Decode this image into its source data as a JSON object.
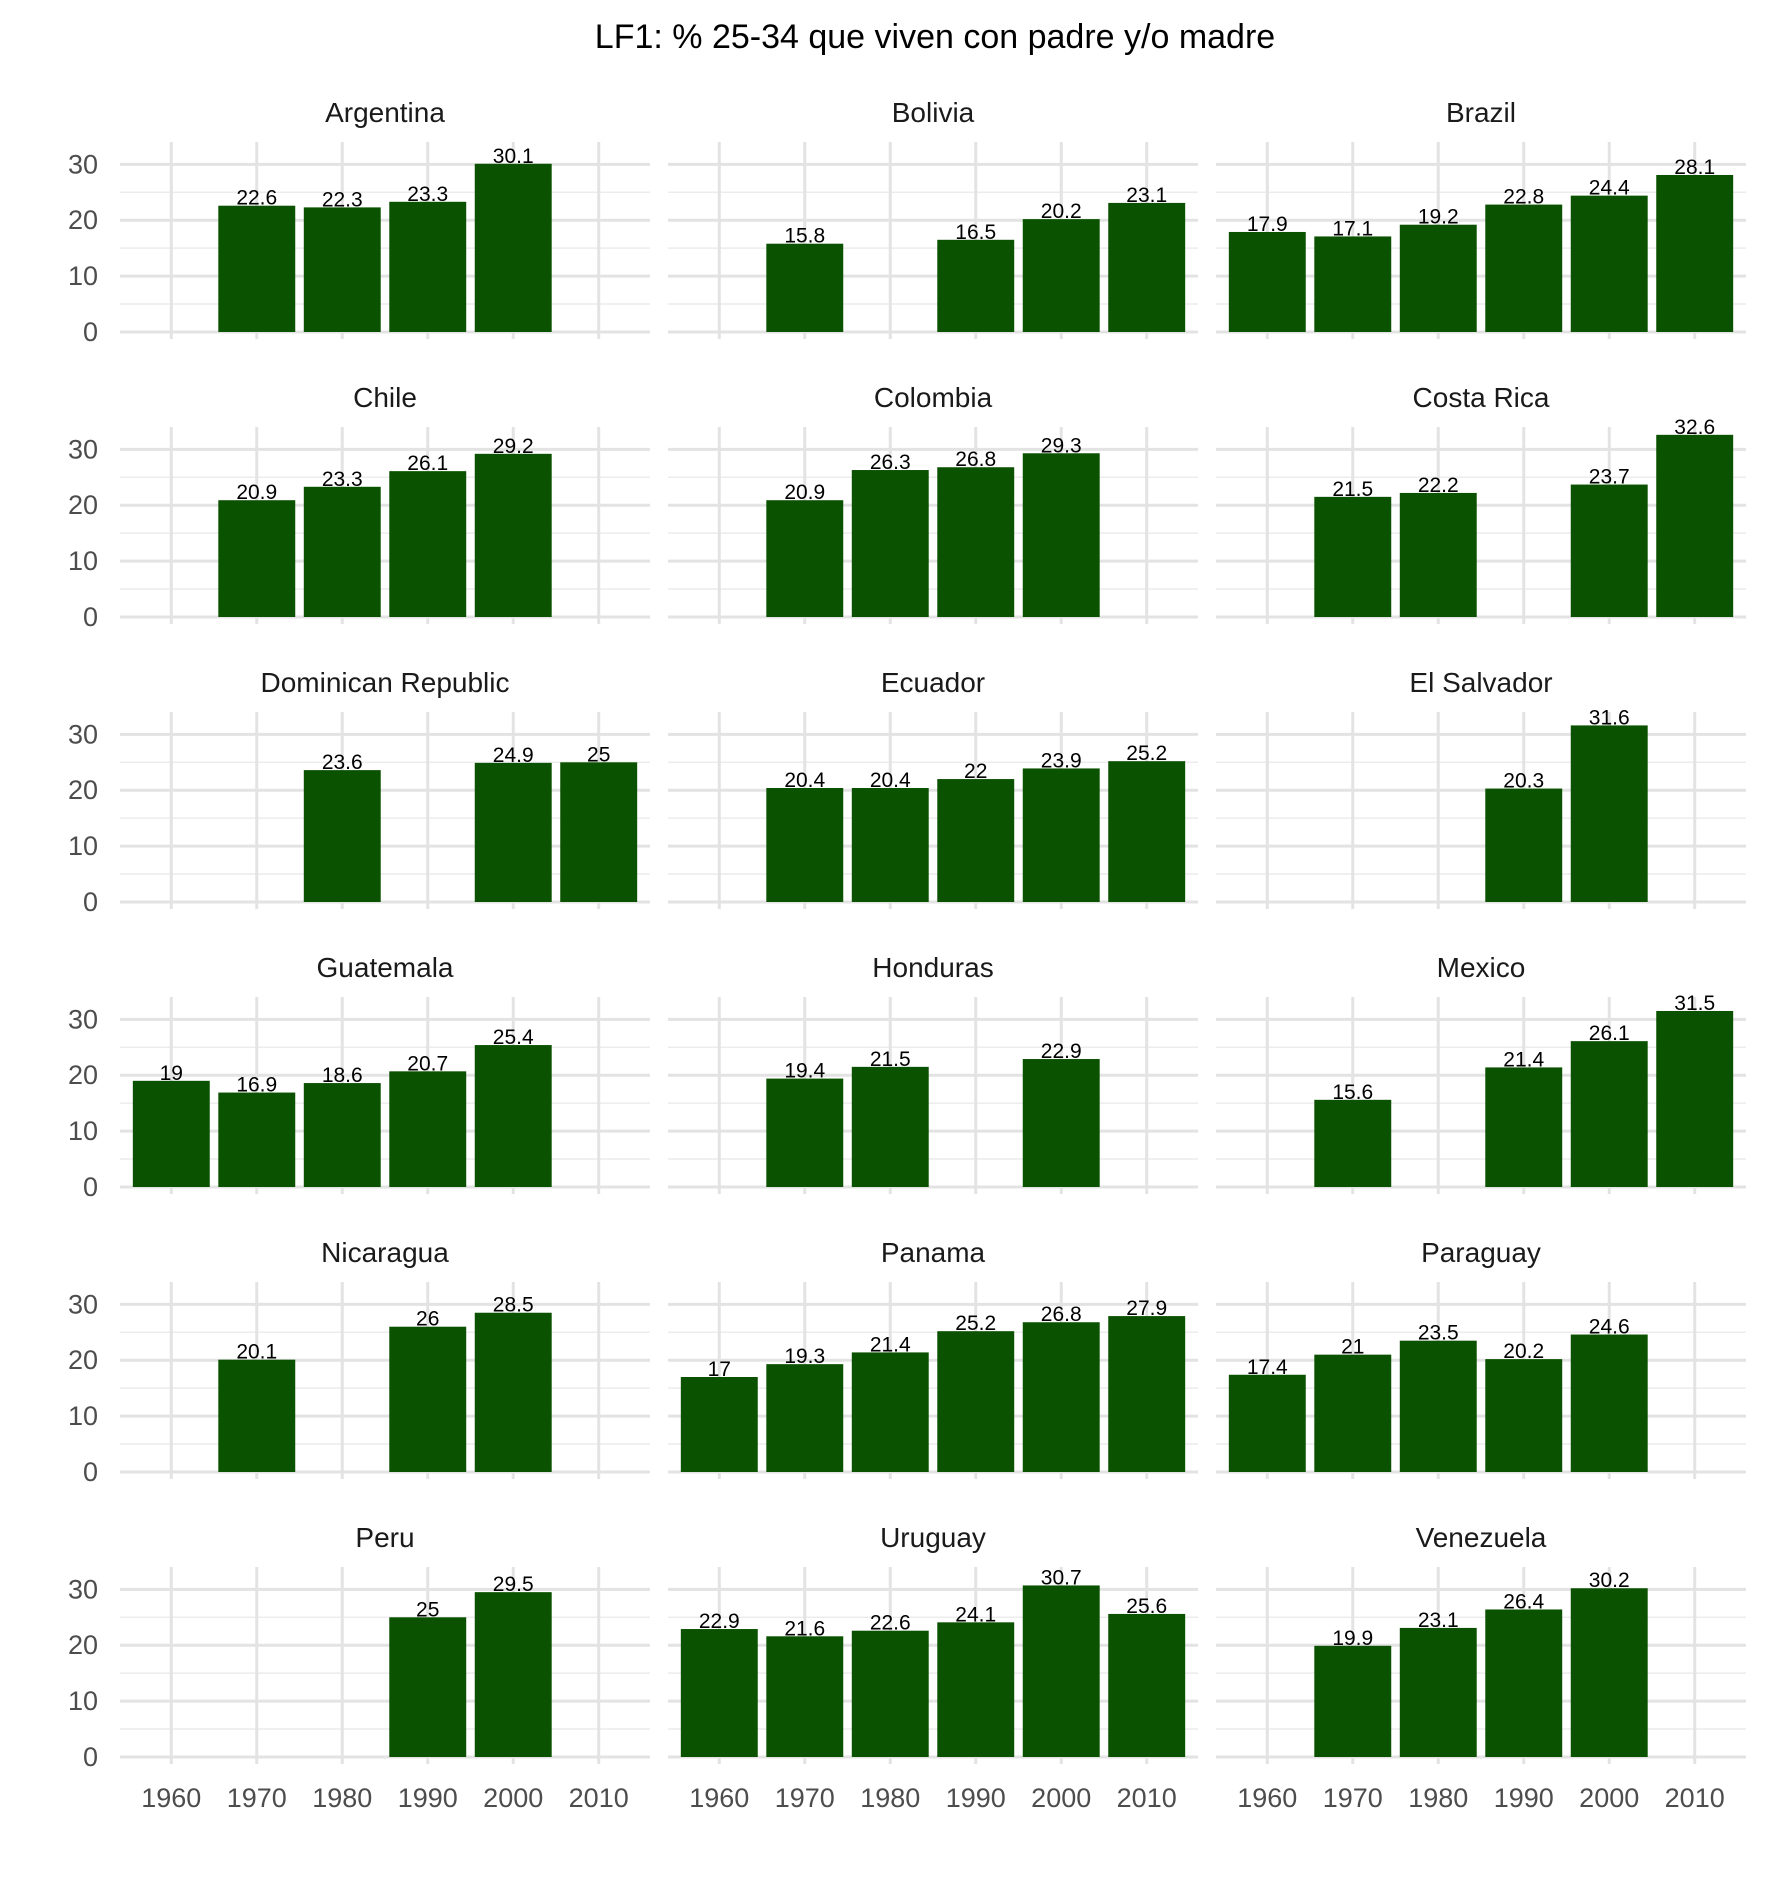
{
  "chart_data": {
    "type": "bar",
    "title": "LF1: % 25-34 que viven con padre y/o madre",
    "xlabel": "",
    "ylabel": "",
    "x_ticks": [
      1960,
      1970,
      1980,
      1990,
      2000,
      2010
    ],
    "y_ticks": [
      0,
      10,
      20,
      30
    ],
    "xlim": [
      1954,
      2016
    ],
    "ylim": [
      0,
      34
    ],
    "grid": true,
    "bar_color": "#0b5200",
    "facets": [
      {
        "name": "Argentina",
        "x": [
          1970,
          1980,
          1990,
          2000
        ],
        "values": [
          22.6,
          22.3,
          23.3,
          30.1
        ]
      },
      {
        "name": "Bolivia",
        "x": [
          1970,
          1990,
          2000,
          2010
        ],
        "values": [
          15.8,
          16.5,
          20.2,
          23.1
        ]
      },
      {
        "name": "Brazil",
        "x": [
          1960,
          1970,
          1980,
          1990,
          2000,
          2010
        ],
        "values": [
          17.9,
          17.1,
          19.2,
          22.8,
          24.4,
          28.1
        ]
      },
      {
        "name": "Chile",
        "x": [
          1970,
          1980,
          1990,
          2000
        ],
        "values": [
          20.9,
          23.3,
          26.1,
          29.2
        ]
      },
      {
        "name": "Colombia",
        "x": [
          1970,
          1980,
          1990,
          2000
        ],
        "values": [
          20.9,
          26.3,
          26.8,
          29.3
        ]
      },
      {
        "name": "Costa Rica",
        "x": [
          1970,
          1980,
          2000,
          2010
        ],
        "values": [
          21.5,
          22.2,
          23.7,
          32.6
        ]
      },
      {
        "name": "Dominican Republic",
        "x": [
          1980,
          2000,
          2010
        ],
        "values": [
          23.6,
          24.9,
          25
        ]
      },
      {
        "name": "Ecuador",
        "x": [
          1970,
          1980,
          1990,
          2000,
          2010
        ],
        "values": [
          20.4,
          20.4,
          22,
          23.9,
          25.2
        ]
      },
      {
        "name": "El Salvador",
        "x": [
          1990,
          2000
        ],
        "values": [
          20.3,
          31.6
        ]
      },
      {
        "name": "Guatemala",
        "x": [
          1960,
          1970,
          1980,
          1990,
          2000
        ],
        "values": [
          19,
          16.9,
          18.6,
          20.7,
          25.4
        ]
      },
      {
        "name": "Honduras",
        "x": [
          1970,
          1980,
          2000
        ],
        "values": [
          19.4,
          21.5,
          22.9
        ]
      },
      {
        "name": "Mexico",
        "x": [
          1970,
          1990,
          2000,
          2010
        ],
        "values": [
          15.6,
          21.4,
          26.1,
          31.5
        ]
      },
      {
        "name": "Nicaragua",
        "x": [
          1970,
          1990,
          2000
        ],
        "values": [
          20.1,
          26,
          28.5
        ]
      },
      {
        "name": "Panama",
        "x": [
          1960,
          1970,
          1980,
          1990,
          2000,
          2010
        ],
        "values": [
          17,
          19.3,
          21.4,
          25.2,
          26.8,
          27.9
        ]
      },
      {
        "name": "Paraguay",
        "x": [
          1960,
          1970,
          1980,
          1990,
          2000
        ],
        "values": [
          17.4,
          21,
          23.5,
          20.2,
          24.6
        ]
      },
      {
        "name": "Peru",
        "x": [
          1990,
          2000
        ],
        "values": [
          25,
          29.5
        ]
      },
      {
        "name": "Uruguay",
        "x": [
          1960,
          1970,
          1980,
          1990,
          2000,
          2010
        ],
        "values": [
          22.9,
          21.6,
          22.6,
          24.1,
          30.7,
          25.6
        ]
      },
      {
        "name": "Venezuela",
        "x": [
          1970,
          1980,
          1990,
          2000
        ],
        "values": [
          19.9,
          23.1,
          26.4,
          30.2
        ]
      }
    ]
  }
}
